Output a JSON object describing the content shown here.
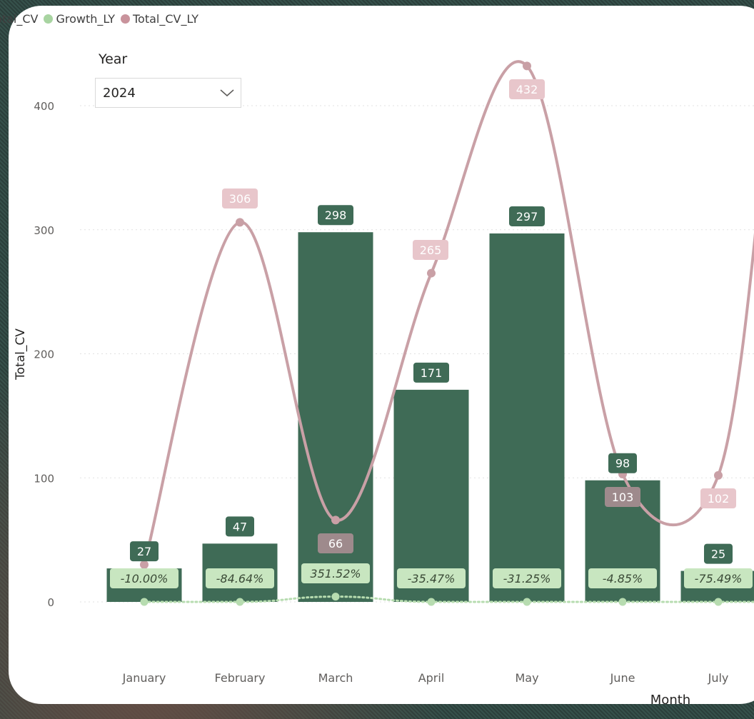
{
  "legend": {
    "items": [
      {
        "label": "Total_CV",
        "color": "#3f6b56"
      },
      {
        "label": "Growth_LY",
        "color": "#a8d4a1"
      },
      {
        "label": "Total_CV_LY",
        "color": "#c9939c"
      }
    ]
  },
  "slicer": {
    "label": "Year",
    "value": "2024"
  },
  "colors": {
    "bar": "#3f6b56",
    "line": "#c9a0a6",
    "growth": "#b7dcb0",
    "bar_label_bg": "#3f6b56",
    "line_label_bg": "#e8c6cb",
    "line_label_bg_dark": "#9e8a8c",
    "growth_label_bg": "#c8e6c0",
    "growth_label_text": "#3a4a36"
  },
  "chart_data": {
    "type": "bar",
    "title": "",
    "xlabel": "Month",
    "ylabel": "Total_CV",
    "ylim": [
      0,
      400
    ],
    "yticks": [
      0,
      100,
      200,
      300,
      400
    ],
    "grid": true,
    "legend_position": "top-left",
    "categories": [
      "January",
      "February",
      "March",
      "April",
      "May",
      "June",
      "July"
    ],
    "series": [
      {
        "name": "Total_CV",
        "type": "bar",
        "values": [
          27,
          47,
          298,
          171,
          297,
          98,
          25
        ],
        "labels": [
          "27",
          "47",
          "298",
          "171",
          "297",
          "98",
          "25"
        ]
      },
      {
        "name": "Total_CV_LY",
        "type": "line",
        "values": [
          30,
          306,
          66,
          265,
          432,
          103,
          102
        ],
        "labels": [
          "",
          "306",
          "66",
          "265",
          "432",
          "103",
          "102"
        ]
      },
      {
        "name": "Growth_LY",
        "type": "line",
        "values": [
          -0.1,
          -0.8464,
          3.5152,
          -0.3547,
          -0.3125,
          -0.0485,
          -0.7549
        ],
        "labels": [
          "-10.00%",
          "-84.64%",
          "351.52%",
          "-35.47%",
          "-31.25%",
          "-4.85%",
          "-75.49%"
        ]
      }
    ]
  }
}
